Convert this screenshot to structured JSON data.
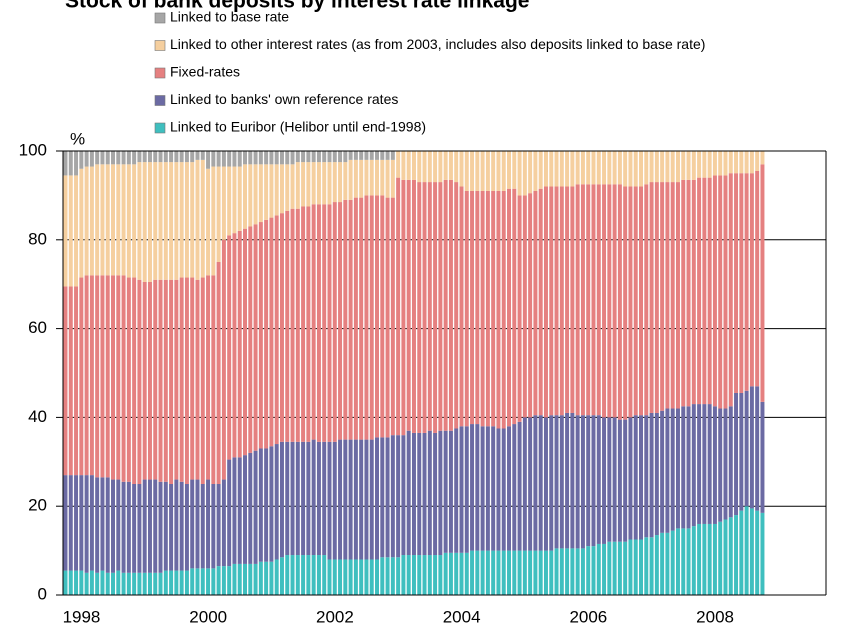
{
  "chart_data": {
    "type": "stacked_bar",
    "title": "Stock of bank deposits by interest rate linkage",
    "y_unit_label": "%",
    "categories": [
      null,
      null,
      null,
      "1998",
      null,
      null,
      null,
      null,
      null,
      null,
      null,
      null,
      null,
      null,
      null,
      null,
      null,
      null,
      null,
      null,
      null,
      null,
      null,
      null,
      null,
      null,
      null,
      "2000",
      null,
      null,
      null,
      null,
      null,
      null,
      null,
      null,
      null,
      null,
      null,
      null,
      null,
      null,
      null,
      null,
      null,
      null,
      null,
      null,
      null,
      null,
      null,
      "2002",
      null,
      null,
      null,
      null,
      null,
      null,
      null,
      null,
      null,
      null,
      null,
      null,
      null,
      null,
      null,
      null,
      null,
      null,
      null,
      null,
      null,
      null,
      null,
      "2004",
      null,
      null,
      null,
      null,
      null,
      null,
      null,
      null,
      null,
      null,
      null,
      null,
      null,
      null,
      null,
      null,
      null,
      null,
      null,
      null,
      null,
      null,
      null,
      "2006",
      null,
      null,
      null,
      null,
      null,
      null,
      null,
      null,
      null,
      null,
      null,
      null,
      null,
      null,
      null,
      null,
      null,
      null,
      null,
      null,
      null,
      null,
      null,
      "2008",
      null,
      null,
      null,
      null,
      null,
      null,
      null,
      null,
      null
    ],
    "series": [
      {
        "name": "Linked to Euribor (Helibor until end-1998)",
        "color": "#3fbfbf",
        "values": [
          5.5,
          5.5,
          5.5,
          5.5,
          5,
          5.5,
          5,
          5.5,
          5,
          5,
          5.5,
          5,
          5,
          5,
          5,
          5,
          5,
          5,
          5,
          5.5,
          5.5,
          5.5,
          5.5,
          5.5,
          6,
          6,
          6,
          6,
          6,
          6.5,
          6.5,
          6.5,
          7,
          7,
          7,
          7,
          7,
          7.5,
          7.5,
          7.5,
          8,
          8.5,
          9,
          9,
          9,
          9,
          9,
          9,
          9,
          9,
          8,
          8,
          8,
          8,
          8,
          8,
          8,
          8,
          8,
          8,
          8.5,
          8.5,
          8.5,
          8.5,
          9,
          9,
          9,
          9,
          9,
          9,
          9,
          9,
          9.5,
          9.5,
          9.5,
          9.5,
          9.5,
          10,
          10,
          10,
          10,
          10,
          10,
          10,
          10,
          10,
          10,
          10,
          10,
          10,
          10,
          10,
          10,
          10.5,
          10.5,
          10.5,
          10.5,
          10.5,
          10.5,
          11,
          11,
          11.5,
          11.5,
          12,
          12,
          12,
          12,
          12.5,
          12.5,
          12.5,
          13,
          13,
          13.5,
          14,
          14,
          14.5,
          15,
          15,
          15,
          15.5,
          16,
          16,
          16,
          16,
          16.5,
          17,
          17.5,
          18,
          19,
          20,
          19.5,
          19,
          18.5
        ]
      },
      {
        "name": "Linked to banks' own reference rates",
        "color": "#6b6aa3",
        "values": [
          21.5,
          21.5,
          21.5,
          21.5,
          22,
          21.5,
          21.5,
          21,
          21.5,
          21,
          20.5,
          20.5,
          20.5,
          20,
          20,
          21,
          21,
          21,
          20.5,
          20,
          19.5,
          20.5,
          20,
          19.5,
          20,
          20,
          19,
          20,
          19,
          18.5,
          19.5,
          24,
          24,
          24,
          24.5,
          25,
          25.5,
          25.5,
          25.5,
          26,
          26,
          26,
          25.5,
          25.5,
          25.5,
          25.5,
          25.5,
          26,
          25.5,
          25.5,
          26.5,
          26.5,
          27,
          27,
          27,
          27,
          27,
          27,
          27,
          27.5,
          27,
          27,
          27.5,
          27.5,
          27,
          28,
          27.5,
          27.5,
          27.5,
          28,
          27.5,
          28,
          27.5,
          27.5,
          28,
          28.5,
          28.5,
          28.5,
          28.5,
          28,
          28,
          28,
          27.5,
          27.5,
          28,
          28.5,
          29,
          30,
          30,
          30.5,
          30.5,
          30,
          30.5,
          30,
          30,
          30.5,
          30.5,
          30,
          30,
          29.5,
          29.5,
          29,
          28.5,
          28,
          28,
          27.5,
          27.5,
          27.5,
          28,
          28,
          27.5,
          28,
          27.5,
          27.5,
          28,
          27.5,
          27,
          27.5,
          27.5,
          27.5,
          27,
          27,
          27,
          26.5,
          25.5,
          25,
          25,
          27.5,
          26.5,
          26,
          27.5,
          28,
          25
        ]
      },
      {
        "name": "Fixed-rates",
        "color": "#e58080",
        "values": [
          42.5,
          42.5,
          42.5,
          44.5,
          45,
          45,
          45.5,
          45.5,
          45.5,
          46,
          46,
          46.5,
          46,
          46.5,
          46,
          44.5,
          44.5,
          45,
          45.5,
          45.5,
          46,
          45,
          46,
          46.5,
          45.5,
          45,
          46.5,
          46,
          47,
          50,
          54,
          50.5,
          50.5,
          51,
          51,
          51,
          51,
          51,
          51.5,
          51.5,
          51.5,
          51.5,
          52,
          52.5,
          52.5,
          53,
          53,
          53,
          53.5,
          53.5,
          53.5,
          54,
          53.5,
          54,
          54,
          54.5,
          54.5,
          55,
          55,
          54.5,
          54.5,
          54,
          53.5,
          58,
          57.5,
          56.5,
          57,
          56.5,
          56.5,
          56,
          56.5,
          56,
          56.5,
          56.5,
          55.5,
          54,
          53,
          52.5,
          52.5,
          53,
          53,
          53,
          53.5,
          53.5,
          53.5,
          53,
          51,
          50,
          50.5,
          50.5,
          51,
          52,
          51.5,
          51.5,
          51.5,
          51,
          51,
          52,
          52,
          52,
          52,
          52,
          52.5,
          52.5,
          52.5,
          53,
          52.5,
          52,
          51.5,
          51.5,
          52,
          52,
          52,
          51.5,
          51,
          51,
          51,
          51,
          51,
          50.5,
          51,
          51,
          51,
          52,
          52.5,
          52.5,
          52.5,
          49.5,
          49.5,
          49,
          48,
          48.5,
          53.5
        ]
      },
      {
        "name": "Linked to other interest rates (as from 2003, includes also deposits linked to base rate)",
        "color": "#f5cf9f",
        "values": [
          25,
          25,
          25,
          24.5,
          24.5,
          24.5,
          25,
          25,
          25,
          25,
          25,
          25,
          25.5,
          25.5,
          26.5,
          27,
          27,
          26.5,
          26.5,
          26.5,
          26.5,
          26.5,
          26,
          26,
          26,
          27,
          26.5,
          24,
          24.5,
          21.5,
          16.5,
          15.5,
          15,
          14.5,
          14.5,
          14,
          13.5,
          13,
          12.5,
          12,
          11.5,
          11,
          10.5,
          10,
          10.5,
          10,
          10,
          9.5,
          9.5,
          9.5,
          9.5,
          9,
          9,
          8.5,
          9,
          8.5,
          8.5,
          8,
          8,
          8,
          8,
          8.5,
          8.5,
          6,
          6.5,
          6.5,
          6.5,
          7,
          7,
          7,
          7,
          7,
          6.5,
          6.5,
          7,
          8,
          9,
          9,
          9,
          9,
          9,
          9,
          9,
          9,
          8.5,
          8.5,
          10,
          10,
          9.5,
          9,
          8.5,
          8,
          8,
          8,
          8,
          8,
          8,
          7.5,
          7.5,
          7.5,
          7.5,
          7.5,
          7.5,
          7.5,
          7.5,
          7.5,
          8,
          8,
          8,
          8,
          7.5,
          7,
          7,
          7,
          7,
          7,
          7,
          6.5,
          6.5,
          6.5,
          6,
          6,
          6,
          5.5,
          5.5,
          5.5,
          5,
          5,
          5,
          5,
          5,
          4.5,
          3
        ]
      },
      {
        "name": "Linked to base rate",
        "color": "#a6a6a6",
        "values": [
          5.5,
          5.5,
          5.5,
          4,
          3.5,
          3.5,
          3,
          3,
          3,
          3,
          3,
          3,
          3,
          3,
          2.5,
          2.5,
          2.5,
          2.5,
          2.5,
          2.5,
          2.5,
          2.5,
          2.5,
          2.5,
          2.5,
          2,
          2,
          4,
          3.5,
          3.5,
          3.5,
          3.5,
          3.5,
          3.5,
          3,
          3,
          3,
          3,
          3,
          3,
          3,
          3,
          3,
          3,
          2.5,
          2.5,
          2.5,
          2.5,
          2.5,
          2.5,
          2.5,
          2.5,
          2.5,
          2.5,
          2,
          2,
          2,
          2,
          2,
          2,
          2,
          2,
          2,
          null,
          null,
          null,
          null,
          null,
          null,
          null,
          null,
          null,
          null,
          null,
          null,
          null,
          null,
          null,
          null,
          null,
          null,
          null,
          null,
          null,
          null,
          null,
          null,
          null,
          null,
          null,
          null,
          null,
          null,
          null,
          null,
          null,
          null,
          null,
          null,
          null,
          null,
          null,
          null,
          null,
          null,
          null,
          null,
          null,
          null,
          null,
          null,
          null,
          null,
          null,
          null,
          null,
          null,
          null,
          null,
          null,
          null,
          null,
          null,
          null,
          null,
          null,
          null,
          null,
          null,
          null,
          null,
          null,
          null
        ]
      }
    ],
    "ylim": [
      0,
      100
    ],
    "yticks": [
      0,
      20,
      40,
      60,
      80,
      100
    ],
    "grid": true
  }
}
